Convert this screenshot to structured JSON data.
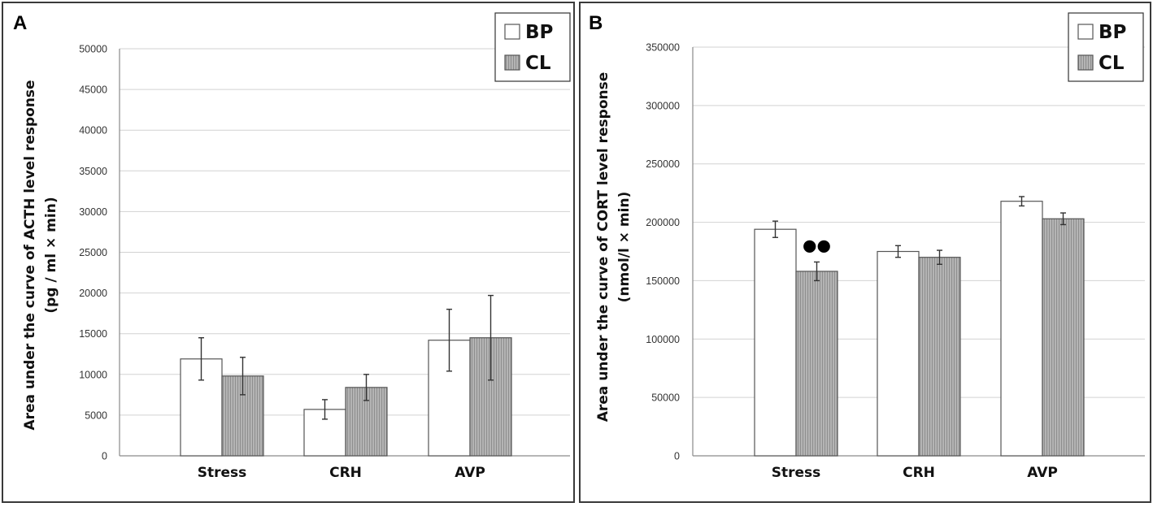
{
  "colors": {
    "bp_fill": "#ffffff",
    "cl_fill": "#b4b4b4",
    "cl_stripe": "#8e8e8e",
    "frame": "#3a3a3a"
  },
  "chart_data": [
    {
      "panel": "A",
      "type": "bar",
      "title": "",
      "ylabel_line1": "Area under the curve of ACTH level response",
      "ylabel_line2": "(pg / ml × min)",
      "xlabel": "",
      "categories": [
        "Stress",
        "CRH",
        "AVP"
      ],
      "ylim": [
        0,
        50000
      ],
      "yticks": [
        0,
        5000,
        10000,
        15000,
        20000,
        25000,
        30000,
        35000,
        40000,
        45000,
        50000
      ],
      "grid": true,
      "legend_position": "top-right",
      "series": [
        {
          "name": "BP",
          "values": [
            11900,
            5700,
            14200
          ],
          "errors": [
            2600,
            1200,
            3800
          ]
        },
        {
          "name": "CL",
          "values": [
            9800,
            8400,
            14500
          ],
          "errors": [
            2300,
            1600,
            5200
          ]
        }
      ],
      "annotations": []
    },
    {
      "panel": "B",
      "type": "bar",
      "title": "",
      "ylabel_line1": "Area under the curve of CORT level response",
      "ylabel_line2": "(nmol/l × min)",
      "xlabel": "",
      "categories": [
        "Stress",
        "CRH",
        "AVP"
      ],
      "ylim": [
        0,
        350000
      ],
      "yticks": [
        0,
        50000,
        100000,
        150000,
        200000,
        250000,
        300000,
        350000
      ],
      "grid": true,
      "legend_position": "top-right",
      "series": [
        {
          "name": "BP",
          "values": [
            194000,
            175000,
            218000
          ],
          "errors": [
            7000,
            5000,
            4000
          ]
        },
        {
          "name": "CL",
          "values": [
            158000,
            170000,
            203000
          ],
          "errors": [
            8000,
            6000,
            5000
          ]
        }
      ],
      "annotations": [
        {
          "text": "●●",
          "category": "Stress",
          "series": "CL"
        }
      ]
    }
  ]
}
